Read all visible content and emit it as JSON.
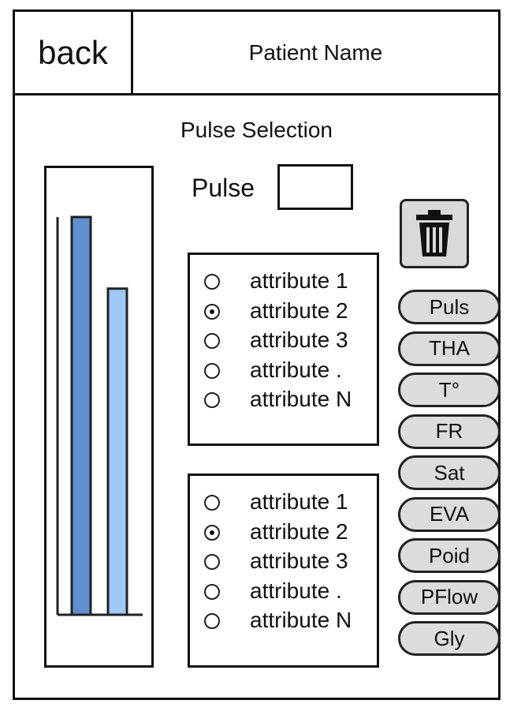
{
  "header": {
    "back_label": "back",
    "patient_name": "Patient Name"
  },
  "page_title": "Pulse Selection",
  "pulse_field": {
    "label": "Pulse",
    "value": ""
  },
  "trash_icon": "trash-icon",
  "chart_data": {
    "type": "bar",
    "categories": [
      "",
      ""
    ],
    "values": [
      100,
      82
    ],
    "colors": [
      "#5f8fcf",
      "#9fc8f7"
    ],
    "ylim": [
      0,
      100
    ],
    "title": "",
    "xlabel": "",
    "ylabel": ""
  },
  "attribute_groups": [
    {
      "options": [
        "attribute 1",
        "attribute 2",
        "attribute 3",
        "attribute .",
        "attribute N"
      ],
      "selected_index": 1
    },
    {
      "options": [
        "attribute 1",
        "attribute 2",
        "attribute 3",
        "attribute .",
        "attribute N"
      ],
      "selected_index": 1
    }
  ],
  "parameter_buttons": [
    "Puls",
    "THA",
    "T°",
    "FR",
    "Sat",
    "EVA",
    "Poid",
    "PFlow",
    "Gly"
  ],
  "colors": {
    "border": "#111111",
    "button_fill": "#dcdcdc",
    "bar_dark": "#5f8fcf",
    "bar_light": "#9fc8f7"
  }
}
